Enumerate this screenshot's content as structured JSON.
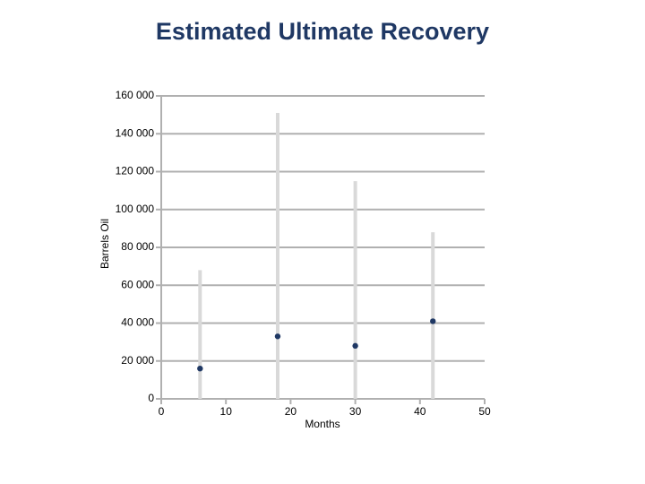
{
  "chart_data": {
    "type": "scatter-range",
    "title": "Estimated Ultimate Recovery",
    "x_label": "Months",
    "y_label": "Barrels Oil",
    "x": [
      6,
      18,
      30,
      42
    ],
    "values": [
      16000,
      33000,
      28000,
      41000
    ],
    "low": [
      0,
      0,
      0,
      0
    ],
    "high": [
      68000,
      151000,
      115000,
      88000
    ],
    "color": "#1f3864",
    "range_color": "#d9d9d9",
    "xlim": [
      0,
      50
    ],
    "xticks": [
      0,
      10,
      20,
      30,
      40,
      50
    ],
    "ylim": [
      0,
      160000
    ],
    "yticks": [
      0,
      {
        "value": 20000,
        "label": "20 000"
      },
      {
        "value": 40000,
        "label": "40 000"
      },
      {
        "value": 60000,
        "label": "60 000"
      },
      {
        "value": 80000,
        "label": "80 000"
      },
      {
        "value": 100000,
        "label": "100 000"
      },
      {
        "value": 120000,
        "label": "120 000"
      },
      {
        "value": 140000,
        "label": "140 000"
      },
      {
        "value": 160000,
        "label": "160 000"
      }
    ],
    "grid": true
  }
}
